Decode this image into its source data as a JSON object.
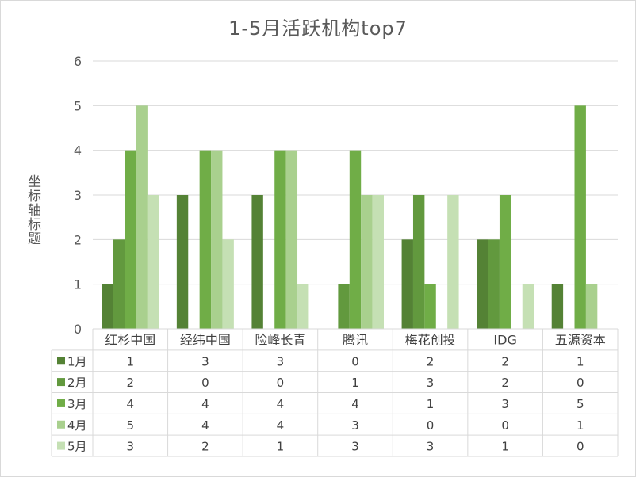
{
  "chart_data": {
    "type": "bar",
    "title": "1-5月活跃机构top7",
    "xlabel": "",
    "ylabel": "坐标轴标题",
    "ylim": [
      0,
      6
    ],
    "yticks": [
      "0",
      "1",
      "2",
      "3",
      "4",
      "5",
      "6"
    ],
    "grid": true,
    "legend": "data-table",
    "categories": [
      "红杉中国",
      "经纬中国",
      "险峰长青",
      "腾讯",
      "梅花创投",
      "IDG",
      "五源资本"
    ],
    "series": [
      {
        "name": "1月",
        "color": "#548235",
        "values": [
          1,
          3,
          3,
          0,
          2,
          2,
          1
        ]
      },
      {
        "name": "2月",
        "color": "#62993e",
        "values": [
          2,
          0,
          0,
          1,
          3,
          2,
          0
        ]
      },
      {
        "name": "3月",
        "color": "#70ad47",
        "values": [
          4,
          4,
          4,
          4,
          1,
          3,
          5
        ]
      },
      {
        "name": "4月",
        "color": "#a9d08e",
        "values": [
          5,
          4,
          4,
          3,
          0,
          0,
          1
        ]
      },
      {
        "name": "5月",
        "color": "#c5e0b4",
        "values": [
          3,
          2,
          1,
          3,
          3,
          1,
          0
        ]
      }
    ],
    "table_values": [
      [
        "1",
        "3",
        "3",
        "0",
        "2",
        "2",
        "1"
      ],
      [
        "2",
        "0",
        "0",
        "1",
        "3",
        "2",
        "0"
      ],
      [
        "4",
        "4",
        "4",
        "4",
        "1",
        "3",
        "5"
      ],
      [
        "5",
        "4",
        "4",
        "3",
        "0",
        "0",
        "1"
      ],
      [
        "3",
        "2",
        "1",
        "3",
        "3",
        "1",
        "0"
      ]
    ]
  }
}
